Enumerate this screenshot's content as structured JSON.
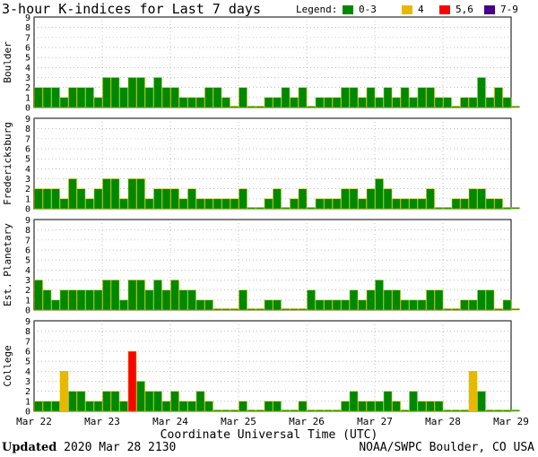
{
  "title": "3-hour K-indices for Last 7 days",
  "legend": {
    "label": "Legend:",
    "items": [
      {
        "label": "0-3",
        "color": "#008800"
      },
      {
        "label": "4",
        "color": "#e8b800"
      },
      {
        "label": "5,6",
        "color": "#ff0000"
      },
      {
        "label": "7-9",
        "color": "#440088"
      }
    ]
  },
  "xlabel": "Coordinate Universal Time (UTC)",
  "footer": {
    "updated_label": "Updated",
    "updated_value": "2020 Mar 28 2130",
    "source": "NOAA/SWPC Boulder, CO USA"
  },
  "chart_data": {
    "type": "bar",
    "x_tick_labels": [
      "Mar 22",
      "Mar 23",
      "Mar 24",
      "Mar 25",
      "Mar 26",
      "Mar 27",
      "Mar 28",
      "Mar 29"
    ],
    "y_tick_labels": [
      "0",
      "1",
      "2",
      "3",
      "4",
      "5",
      "6",
      "7",
      "8",
      "9"
    ],
    "ylim": [
      0,
      9
    ],
    "grid": true,
    "bins_per_day": 8,
    "panels": [
      {
        "name": "Boulder",
        "values": [
          2,
          2,
          2,
          1,
          2,
          2,
          2,
          1,
          3,
          3,
          2,
          3,
          3,
          2,
          3,
          2,
          2,
          1,
          1,
          1,
          2,
          2,
          1,
          0,
          2,
          0,
          0,
          1,
          1,
          2,
          1,
          2,
          0,
          1,
          1,
          1,
          2,
          2,
          1,
          2,
          1,
          2,
          1,
          2,
          1,
          2,
          2,
          1,
          1,
          0,
          1,
          1,
          3,
          1,
          2,
          1,
          0
        ]
      },
      {
        "name": "Fredericksburg",
        "values": [
          2,
          2,
          2,
          1,
          3,
          2,
          1,
          2,
          3,
          3,
          1,
          3,
          3,
          1,
          2,
          2,
          2,
          1,
          2,
          1,
          1,
          1,
          1,
          1,
          2,
          0,
          0,
          1,
          2,
          0,
          1,
          2,
          0,
          1,
          1,
          1,
          2,
          2,
          1,
          2,
          3,
          2,
          1,
          1,
          1,
          1,
          2,
          0,
          0,
          1,
          1,
          2,
          2,
          1,
          1,
          0,
          0
        ]
      },
      {
        "name": "Est. Planetary",
        "values": [
          3,
          2,
          1,
          2,
          2,
          2,
          2,
          2,
          3,
          3,
          1,
          3,
          3,
          2,
          3,
          2,
          3,
          2,
          2,
          1,
          1,
          0,
          0,
          0,
          2,
          0,
          0,
          1,
          1,
          0,
          0,
          0,
          2,
          1,
          1,
          1,
          1,
          2,
          1,
          2,
          3,
          2,
          2,
          1,
          1,
          1,
          2,
          2,
          0,
          0,
          1,
          1,
          2,
          2,
          0,
          1,
          0
        ]
      },
      {
        "name": "College",
        "values": [
          1,
          1,
          1,
          4,
          2,
          2,
          1,
          1,
          2,
          2,
          1,
          6,
          3,
          2,
          2,
          1,
          2,
          1,
          1,
          2,
          1,
          0,
          0,
          0,
          1,
          0,
          0,
          1,
          1,
          0,
          0,
          1,
          0,
          0,
          0,
          0,
          1,
          2,
          1,
          1,
          1,
          2,
          1,
          0,
          2,
          1,
          1,
          1,
          0,
          0,
          0,
          4,
          2,
          0,
          0,
          0,
          0
        ]
      }
    ]
  }
}
